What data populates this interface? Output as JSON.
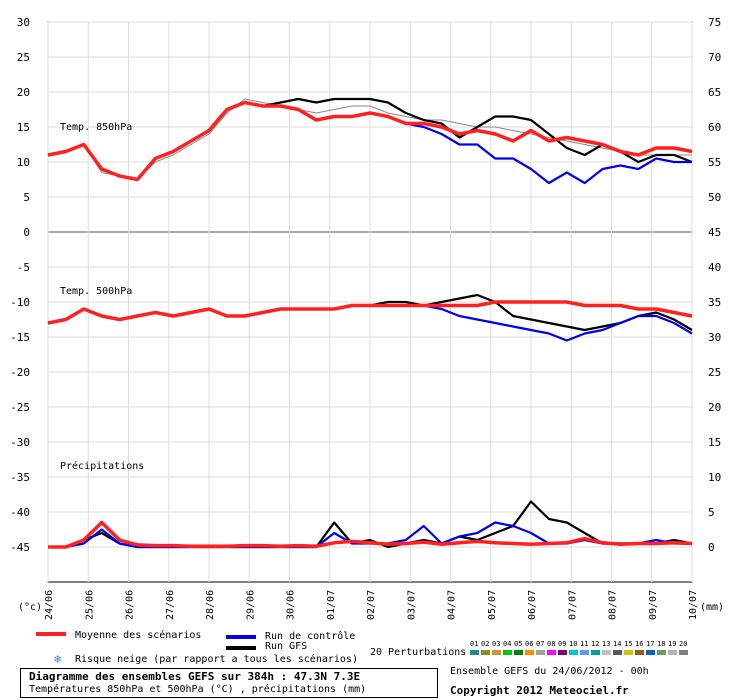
{
  "chart_data": {
    "type": "line",
    "title": "Diagramme des ensembles GEFS sur 384h : 47.3N 7.3E",
    "subtitle": "Températures 850hPa et 500hPa (°C) , précipitations (mm)",
    "run_info": "Ensemble GEFS du 24/06/2012 - 00h",
    "copyright": "Copyright 2012 Meteociel.fr",
    "left_axis": {
      "label": "(°c)",
      "ticks": [
        30,
        25,
        20,
        15,
        10,
        5,
        0,
        -5,
        -10,
        -15,
        -20,
        -25,
        -30,
        -35,
        -40,
        -45
      ],
      "range": [
        -45,
        30
      ]
    },
    "right_axis": {
      "label": "(mm)",
      "ticks": [
        75,
        70,
        65,
        60,
        55,
        50,
        45,
        40,
        35,
        30,
        25,
        20,
        15,
        10,
        5,
        0
      ]
    },
    "x_ticks": [
      "24/06",
      "25/06",
      "26/06",
      "27/06",
      "28/06",
      "29/06",
      "30/06",
      "01/07",
      "02/07",
      "03/07",
      "04/07",
      "05/07",
      "06/07",
      "07/07",
      "08/07",
      "09/07",
      "10/07"
    ],
    "panel_labels": [
      "Temp. 850hPa",
      "Temp. 500hPa",
      "Précipitations"
    ],
    "grid": true,
    "series": [
      {
        "name": "Moyenne des scénarios",
        "color": "#ff2020",
        "panel": "t850",
        "values": [
          11,
          11.5,
          12.5,
          9,
          8,
          7.5,
          10.5,
          11.5,
          13,
          14.5,
          17.5,
          18.5,
          18,
          18,
          17.5,
          16,
          16.5,
          16.5,
          17,
          16.5,
          15.5,
          15.5,
          15,
          14,
          14.5,
          14,
          13,
          14.5,
          13,
          13.5,
          13,
          12.5,
          11.5,
          11,
          12,
          12,
          11.5
        ]
      },
      {
        "name": "Run de contrôle",
        "color": "#0000ee",
        "panel": "t850",
        "values": [
          11,
          11.5,
          12.5,
          9,
          8,
          7.5,
          10.5,
          11.5,
          13,
          14.5,
          17.5,
          18.5,
          18,
          18,
          17.5,
          16,
          16.5,
          16.5,
          17,
          16.5,
          15.5,
          15,
          14,
          12.5,
          12.5,
          10.5,
          10.5,
          9,
          7,
          8.5,
          7,
          9,
          9.5,
          9,
          10.5,
          10,
          10
        ]
      },
      {
        "name": "Run GFS",
        "color": "#000000",
        "panel": "t850",
        "values": [
          11,
          11.5,
          12.5,
          9,
          8,
          7.5,
          10.5,
          11.5,
          13,
          14.5,
          17.5,
          18.5,
          18,
          18.5,
          19,
          18.5,
          19,
          19,
          19,
          18.5,
          17,
          16,
          15.5,
          13.5,
          15,
          16.5,
          16.5,
          16,
          14,
          12,
          11,
          12.5,
          11.5,
          10,
          11,
          11,
          10
        ]
      },
      {
        "name": "Moyenne des scénarios",
        "color": "#ff2020",
        "panel": "t500",
        "values": [
          -13,
          -12.5,
          -11,
          -12,
          -12.5,
          -12,
          -11.5,
          -12,
          -11.5,
          -11,
          -12,
          -12,
          -11.5,
          -11,
          -11,
          -11,
          -11,
          -10.5,
          -10.5,
          -10.5,
          -10.5,
          -10.5,
          -10.5,
          -10.5,
          -10.5,
          -10,
          -10,
          -10,
          -10,
          -10,
          -10.5,
          -10.5,
          -10.5,
          -11,
          -11,
          -11.5,
          -12
        ]
      },
      {
        "name": "Run de contrôle",
        "color": "#0000ee",
        "panel": "t500",
        "values": [
          -13,
          -12.5,
          -11,
          -12,
          -12.5,
          -12,
          -11.5,
          -12,
          -11.5,
          -11,
          -12,
          -12,
          -11.5,
          -11,
          -11,
          -11,
          -11,
          -10.5,
          -10.5,
          -10.5,
          -10.5,
          -10.5,
          -11,
          -12,
          -12.5,
          -13,
          -13.5,
          -14,
          -14.5,
          -15.5,
          -14.5,
          -14,
          -13,
          -12,
          -12,
          -13,
          -14.5
        ]
      },
      {
        "name": "Run GFS",
        "color": "#000000",
        "panel": "t500",
        "values": [
          -13,
          -12.5,
          -11,
          -12,
          -12.5,
          -12,
          -11.5,
          -12,
          -11.5,
          -11,
          -12,
          -12,
          -11.5,
          -11,
          -11,
          -11,
          -11,
          -10.5,
          -10.5,
          -10,
          -10,
          -10.5,
          -10,
          -9.5,
          -9,
          -10,
          -12,
          -12.5,
          -13,
          -13.5,
          -14,
          -13.5,
          -13,
          -12,
          -11.5,
          -12.5,
          -14
        ]
      },
      {
        "name": "Moyenne des scénarios",
        "color": "#ff2020",
        "panel": "precip",
        "values": [
          0,
          0,
          1,
          3.5,
          1,
          0.3,
          0.2,
          0.2,
          0.1,
          0.1,
          0.1,
          0.2,
          0.2,
          0.1,
          0.2,
          0.1,
          0.6,
          0.8,
          0.6,
          0.4,
          0.5,
          0.7,
          0.4,
          0.6,
          0.8,
          0.6,
          0.5,
          0.4,
          0.5,
          0.6,
          1.2,
          0.6,
          0.4,
          0.5,
          0.5,
          0.6,
          0.5
        ]
      },
      {
        "name": "Run de contrôle",
        "color": "#0000ee",
        "panel": "precip",
        "values": [
          0,
          0,
          0.5,
          2.5,
          0.5,
          0,
          0,
          0,
          0,
          0,
          0,
          0,
          0,
          0,
          0,
          0,
          2,
          0.5,
          0.5,
          0.5,
          1,
          3,
          0.5,
          1.5,
          2,
          3.5,
          3,
          2,
          0.5,
          0.5,
          1,
          0.5,
          0.5,
          0.5,
          1,
          0.5,
          0.5
        ]
      },
      {
        "name": "Run GFS",
        "color": "#000000",
        "panel": "precip",
        "values": [
          0,
          0,
          1,
          2,
          0.5,
          0,
          0,
          0,
          0,
          0,
          0,
          0,
          0,
          0,
          0,
          0,
          3.5,
          0.5,
          1,
          0,
          0.5,
          1,
          0.5,
          1.5,
          1,
          2,
          3,
          6.5,
          4,
          3.5,
          2,
          0.5,
          0.5,
          0.5,
          0.5,
          1,
          0.5
        ]
      },
      {
        "name": "Perturbations",
        "color": "#888888",
        "panel": "t850",
        "values": [
          11,
          11.5,
          12.5,
          8.5,
          8,
          7.5,
          10,
          11,
          12.5,
          14,
          17,
          19,
          18.5,
          18,
          17.5,
          17,
          17.5,
          18,
          18,
          17,
          16.5,
          16,
          16,
          15.5,
          15,
          15,
          14.5,
          14,
          13.5,
          13,
          12.5,
          12,
          11.5,
          11,
          11,
          11,
          11
        ]
      },
      {
        "name": "Perturbations",
        "color": "#888888",
        "panel": "t500",
        "values": [
          -13,
          -12.5,
          -11,
          -12,
          -12.5,
          -12,
          -11.5,
          -12,
          -11.5,
          -11,
          -12,
          -12,
          -11.5,
          -11,
          -11,
          -11,
          -11,
          -10.5,
          -10.5,
          -10.5,
          -10.5,
          -10.5,
          -10.5,
          -10.5,
          -10.5,
          -10,
          -10,
          -10,
          -10,
          -10,
          -10.5,
          -10.5,
          -10.5,
          -11,
          -11,
          -11.5,
          -12
        ]
      }
    ],
    "perturbation_labels": [
      "01",
      "02",
      "03",
      "04",
      "05",
      "06",
      "07",
      "08",
      "09",
      "10",
      "11",
      "12",
      "13",
      "14",
      "15",
      "16",
      "17",
      "18",
      "19",
      "20"
    ],
    "perturbation_colors": [
      "#1e8c8c",
      "#8c8c1e",
      "#c89632",
      "#00c800",
      "#008000",
      "#ff8c00",
      "#a0a0a0",
      "#ff00ff",
      "#800080",
      "#00c8c8",
      "#6496ff",
      "#00a0a0",
      "#c0c0c0",
      "#5a5a5a",
      "#c8c800",
      "#9b5a1e",
      "#0066cc",
      "#64a064",
      "#b4b4b4",
      "#808080"
    ]
  },
  "legend": {
    "mean": "Moyenne des scénarios",
    "control": "Run de contrôle",
    "gfs": "Run GFS",
    "snow": "Risque neige (par rapport a tous les scénarios)",
    "perturbations": "20 Perturbations",
    "snow_icon": "snowflake-icon"
  }
}
